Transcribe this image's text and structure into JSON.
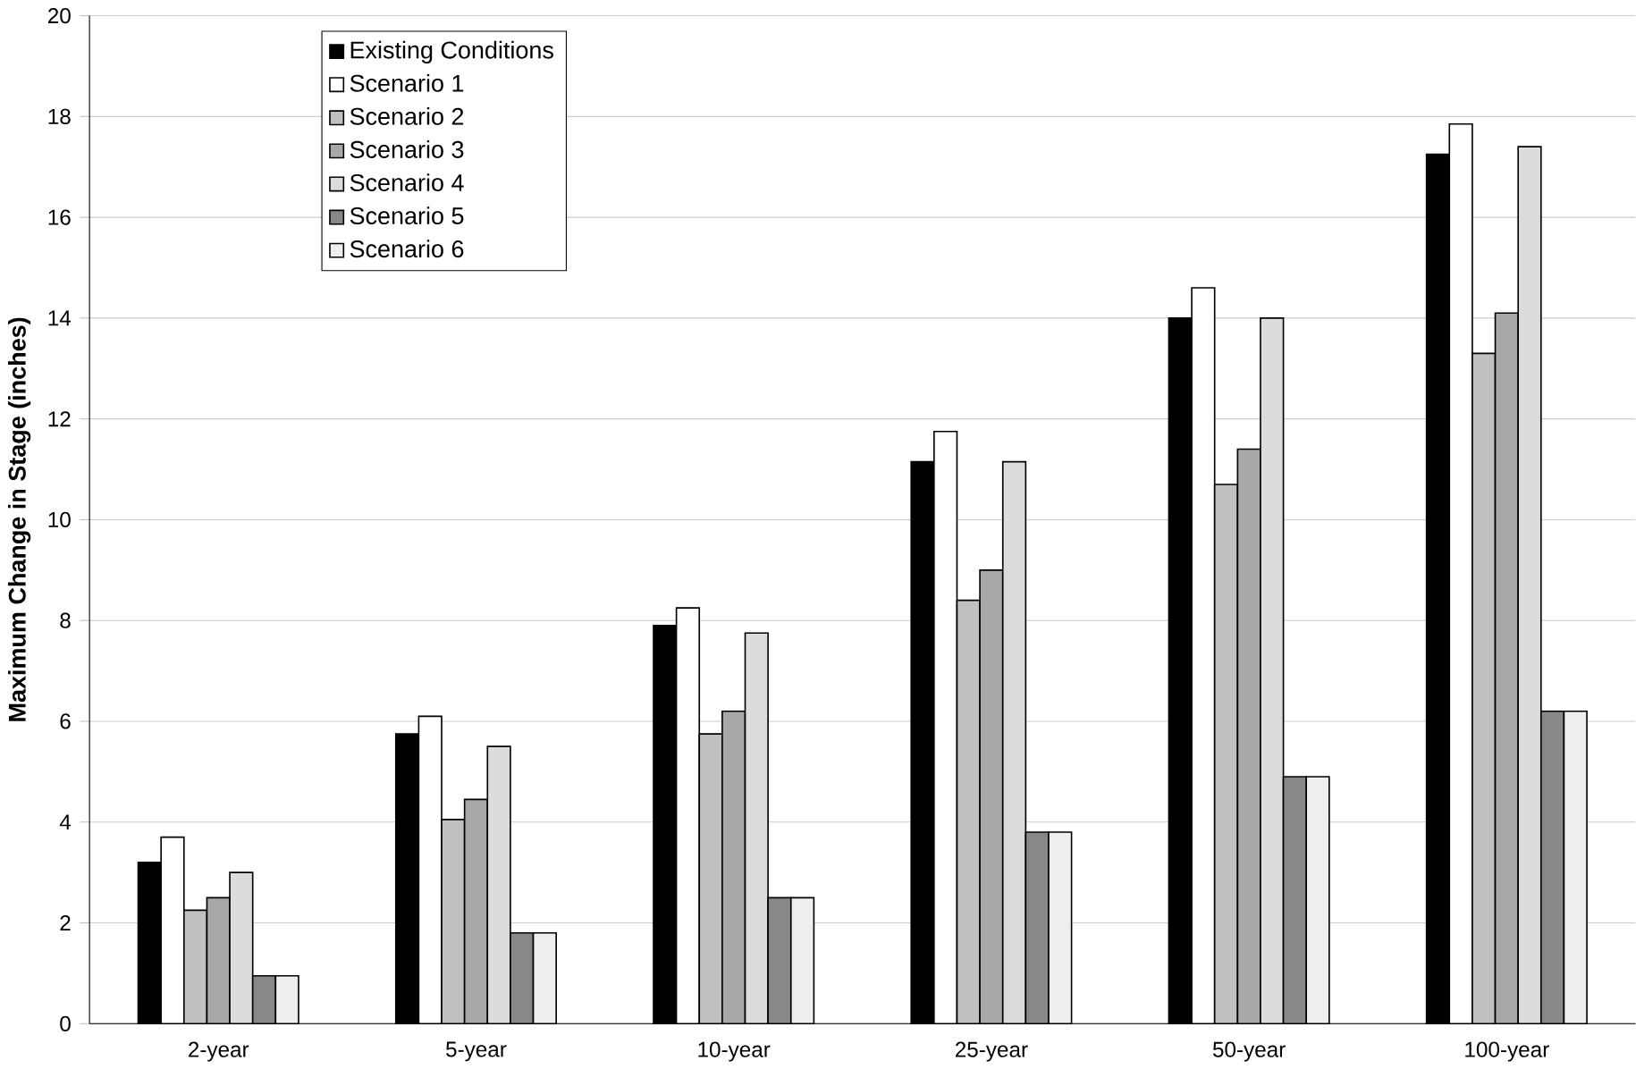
{
  "chart_data": {
    "type": "bar",
    "ylabel": "Maximum Change in Stage (inches)",
    "categories": [
      "2-year",
      "5-year",
      "10-year",
      "25-year",
      "50-year",
      "100-year"
    ],
    "series": [
      {
        "name": "Existing Conditions",
        "color": "#000000",
        "values": [
          3.2,
          5.75,
          7.9,
          11.15,
          14.0,
          17.25
        ]
      },
      {
        "name": "Scenario 1",
        "color": "#ffffff",
        "values": [
          3.7,
          6.1,
          8.25,
          11.75,
          14.6,
          17.85
        ]
      },
      {
        "name": "Scenario 2",
        "color": "#c0c0c0",
        "values": [
          2.25,
          4.05,
          5.75,
          8.4,
          10.7,
          13.3
        ]
      },
      {
        "name": "Scenario 3",
        "color": "#a8a8a8",
        "values": [
          2.5,
          4.45,
          6.2,
          9.0,
          11.4,
          14.1
        ]
      },
      {
        "name": "Scenario 4",
        "color": "#dcdcdc",
        "values": [
          3.0,
          5.5,
          7.75,
          11.15,
          14.0,
          17.4
        ]
      },
      {
        "name": "Scenario 5",
        "color": "#888888",
        "values": [
          0.95,
          1.8,
          2.5,
          3.8,
          4.9,
          6.2
        ]
      },
      {
        "name": "Scenario 6",
        "color": "#eeeeee",
        "values": [
          0.95,
          1.8,
          2.5,
          3.8,
          4.9,
          6.2
        ]
      }
    ],
    "ylim": [
      0,
      20
    ],
    "yticks": [
      0,
      2,
      4,
      6,
      8,
      10,
      12,
      14,
      16,
      18,
      20
    ],
    "grid": "y",
    "legend": "top left"
  }
}
